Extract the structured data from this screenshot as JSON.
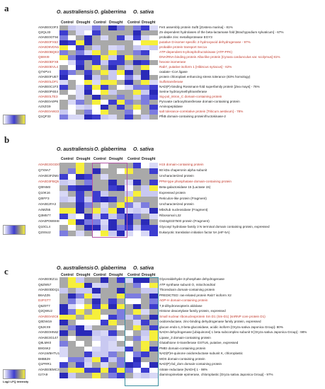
{
  "species": [
    "O. australiensis",
    "O. glaberrima",
    "O. sativa"
  ],
  "conditions": [
    "Control",
    "Drought"
  ],
  "legend_label": "Log2 LFQ intensity",
  "panels": [
    {
      "label": "a",
      "rows": [
        {
          "acc": "A0A0E0C0F3",
          "desc": "FeS assembly protein SufE [Zostera marina] - 81%",
          "red": false
        },
        {
          "acc": "Q2QL33",
          "desc": "Zn-dependent hydrolases of the beta-lactamase fold [Brachypodium sylvaticum] - 67%",
          "red": false
        },
        {
          "acc": "A0A0E0GT94",
          "desc": "probable zinc metalloprotease EGY3",
          "red": false
        },
        {
          "acc": "A0A0E0FX53",
          "desc": "putative D-isomer specific 2-hydroxyacid dehydrogenase - 97%",
          "red": true
        },
        {
          "acc": "A0A0D9VDN1",
          "desc": "probable protein transport Sec1a",
          "red": true
        },
        {
          "acc": "A0A0E0BQE3",
          "desc": "ATP-dependent 6-phosphofructokinase (ATP-PFK)",
          "red": true
        },
        {
          "acc": "Q69XI9",
          "desc": "DNA/RNA-binding protein Alba-like protein [Cynara cardunculus var. scolymus] 81%",
          "red": true
        },
        {
          "acc": "A0A0E0EFX8",
          "desc": "hexose isomerase",
          "red": true
        },
        {
          "acc": "A0A0E0EVL4",
          "desc": "Rab7, putative isoform 1 [Hibiscus syriacus] - 62%",
          "red": true
        },
        {
          "acc": "Q7XPV4",
          "desc": "oxalate--CoA ligase",
          "red": false
        },
        {
          "acc": "A0A0E0FUE7",
          "desc": "protein chloroplast enhancing stress tolerance (83% homology)",
          "red": false
        },
        {
          "acc": "A0A0E0LDF1",
          "desc": "Sulfotransferase",
          "red": true
        },
        {
          "acc": "A0A0E0C1F3",
          "desc": "NAD(P)-binding Rossmann-fold superfamily protein [Zea mays] - 76%",
          "red": false
        },
        {
          "acc": "A0A0E0P4E4",
          "desc": "Serine hydroxymethyltransferase",
          "red": false
        },
        {
          "acc": "A0A0E0LTE3",
          "desc": "Sig-pol_intron_C domain-containing protein",
          "red": true
        },
        {
          "acc": "A0A0E0A0P6",
          "desc": "Pyruvate carboxyltransferase domain-containing protein",
          "red": false
        },
        {
          "acc": "A2XZG9",
          "desc": "Aminopeptidase",
          "red": false
        },
        {
          "acc": "A0A0E0AW23",
          "desc": "salt tolerance-correlative protein [Triticum aestivum] - 78%",
          "red": true
        },
        {
          "acc": "Q1QF33",
          "desc": "PfkB domain-containing protein/fructokinase-2",
          "red": false
        }
      ]
    },
    {
      "label": "b",
      "rows": [
        {
          "acc": "A0A0E3GGD0",
          "desc": "H15 domain-containing protein",
          "red": true
        },
        {
          "acc": "Q7X9A7",
          "desc": "60 kDa chaperonin alpha subunit",
          "red": false
        },
        {
          "acc": "A0A0E3FZM4",
          "desc": "Uncharacterized protein",
          "red": false
        },
        {
          "acc": "A0A0D3FBQ5",
          "desc": "PPM-type phosphatase domain-containing protein",
          "red": true
        },
        {
          "acc": "Q0INM3",
          "desc": "Beta-galactosidase 15 (Lactase 15)",
          "red": false
        },
        {
          "acc": "Q10K16",
          "desc": "Expressed protein",
          "red": false
        },
        {
          "acc": "Q0IFF3",
          "desc": "Reticulon-like protein (Fragment)",
          "red": false
        },
        {
          "acc": "A0A0E2FA3",
          "desc": "Uncharacterized protein",
          "red": false
        },
        {
          "acc": "A4MZ55",
          "desc": "Mbs/tub nucleosidase (Fragment)",
          "red": false
        },
        {
          "acc": "Q3M577",
          "desc": "Ribosomal L32",
          "red": false
        },
        {
          "acc": "A0A0P0W8H8",
          "desc": "Os04g0337500 protein (Fragment)",
          "red": false
        },
        {
          "acc": "Q10CL4",
          "desc": "Glycosyl hydrolase family 3 N terminal domain containing protein, expressed",
          "red": false
        },
        {
          "acc": "Q2S5U2",
          "desc": "Eukaryotic translation initiation factor 5A (eIF-5A)",
          "red": false
        }
      ]
    },
    {
      "label": "c",
      "rows": [
        {
          "acc": "A0A0E0EZ11",
          "desc": "Glyceraldehyde-3-phosphate dehydrogenase",
          "red": false
        },
        {
          "acc": "Q6ZW57",
          "desc": "ATP synthase subunit O, mitochondrial",
          "red": false
        },
        {
          "acc": "A0A0E0DDQ1",
          "desc": "Thioredoxin domain-containing protein",
          "red": false
        },
        {
          "acc": "B6AZZ6",
          "desc": "PREDICTED: ras-related protein Rab7 isoform X2",
          "red": false
        },
        {
          "acc": "D2FGT7",
          "desc": "ADP-H domain-containing protein",
          "red": true
        },
        {
          "acc": "Q6Z0T7",
          "desc": "7,8-dihydroneopterin aldolase",
          "red": false
        },
        {
          "acc": "Q2QWU2",
          "desc": "Histone deacetylase family protein, expressed",
          "red": false
        },
        {
          "acc": "A0A0E0A0C6",
          "desc": "Small nuclear ribonucleoprotein Sm D1 (Sm-D1) (snRNP core protein D1)",
          "red": true
        },
        {
          "acc": "Q0DW19",
          "desc": "oxidoreductase, zinc-binding dehydrogenase family protein, expressed",
          "red": false
        },
        {
          "acc": "Q5JKX9",
          "desc": "glucan endo-1,3-beta-glucosidase, acidic isoform [Oryza sativa Japonica Group]- 80%",
          "red": false
        },
        {
          "acc": "A0A0E0HN62",
          "desc": "NADH dehydrogenase [ubiquinone] 1 beta subcomplex subunit 9 [Oryza sativa Japonica Group] - 98%",
          "red": false
        },
        {
          "acc": "A0A0E3G147",
          "desc": "Lipase_3 domain-containing protein",
          "red": false
        },
        {
          "acc": "Q8LMK0",
          "desc": "Glutathione S-transferase GSTU6, putative, expressed",
          "red": false
        },
        {
          "acc": "B9G6K2",
          "desc": "PMEI domain-containing protein",
          "red": false
        },
        {
          "acc": "A0A1W5HTU1",
          "desc": "NAD(P)H-quinone oxidoreductase subunit K, chloroplastic",
          "red": false
        },
        {
          "acc": "B8BB29",
          "desc": "MOS domain-containing protein",
          "red": false
        },
        {
          "acc": "Q1PRR1",
          "desc": "NAD(P)-bd_dom domain-containing protein",
          "red": false
        },
        {
          "acc": "A0A0E0EMC3",
          "desc": "nitrate reductase [NADH] 1 - 98%",
          "red": false
        },
        {
          "acc": "I1I7A9",
          "desc": "diaminopimelate epimerase, chloroplastic [Oryza sativa Japonica Group] - 97%",
          "red": false
        }
      ]
    }
  ],
  "colors": {
    "low": "#ffffff",
    "mid": "#3d3dcf",
    "high": "#f6ef3b",
    "missing": "#a9a9a9",
    "box_b": "#b455a8",
    "box_c": "#3a8ea0",
    "red_text": "#c0392b"
  }
}
